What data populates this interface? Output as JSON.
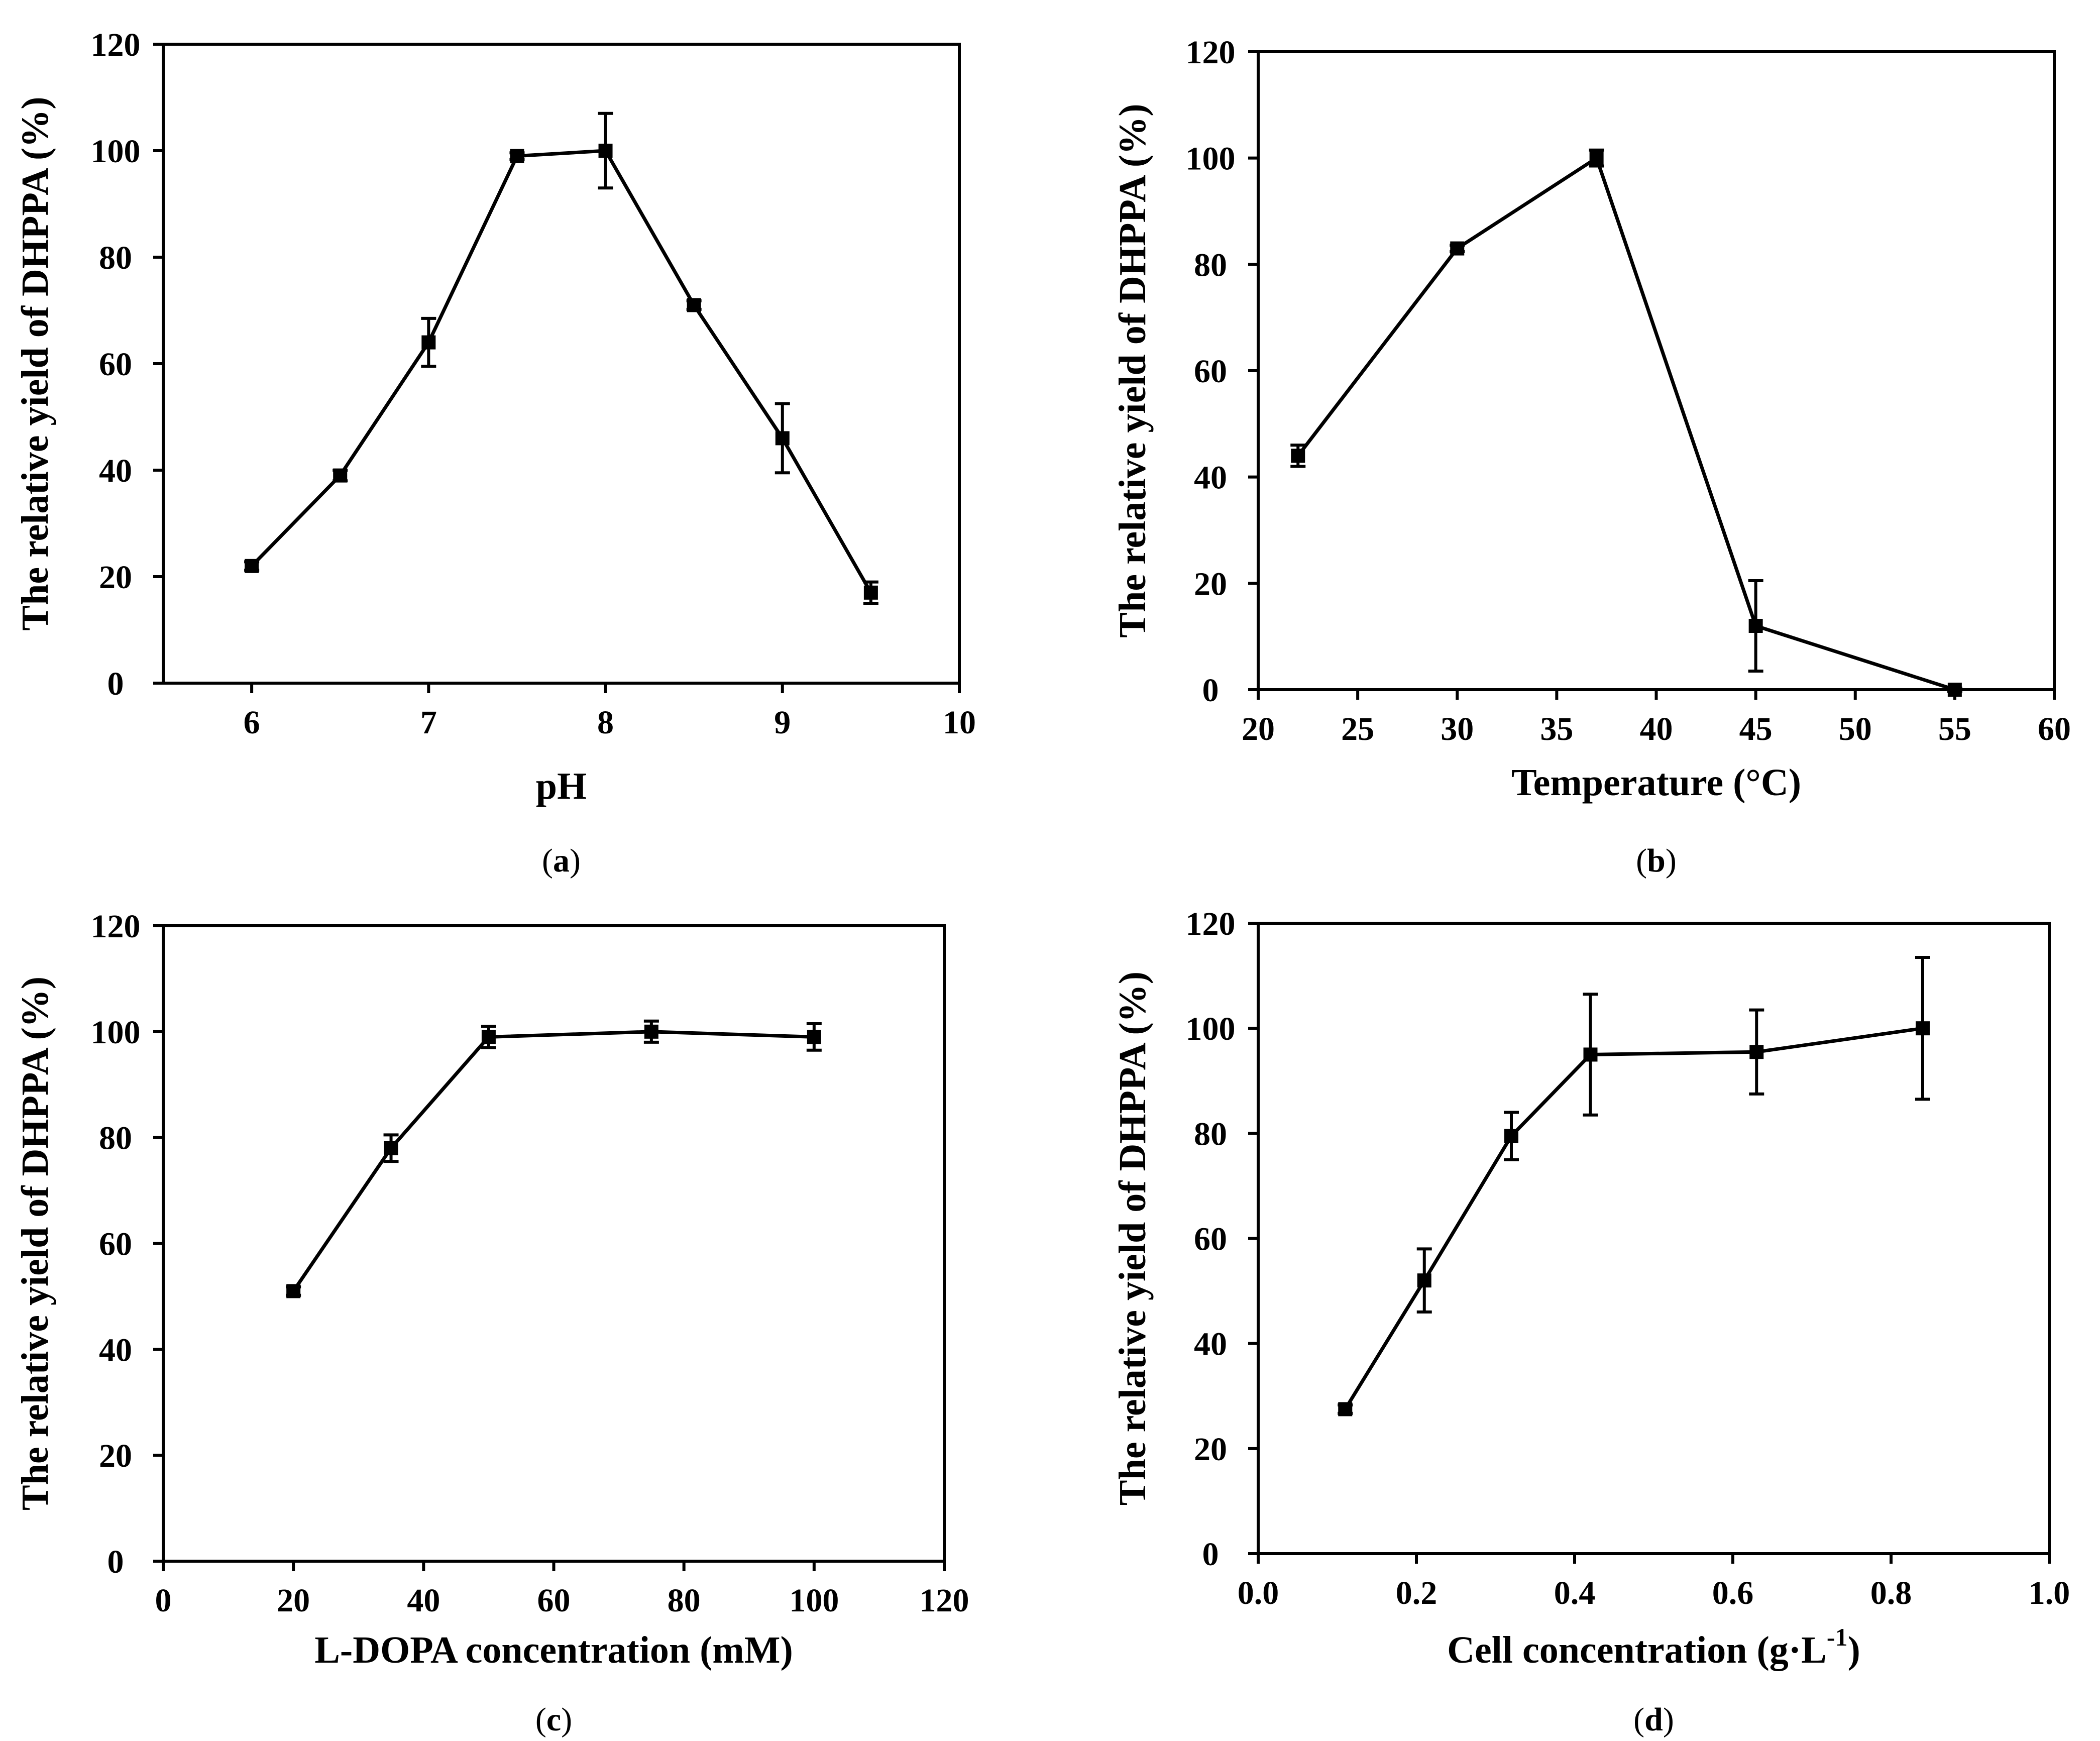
{
  "figure": {
    "panels": [
      "a",
      "b",
      "c",
      "d"
    ]
  },
  "chart_data": [
    {
      "type": "line",
      "panel_label": "a",
      "xlabel": "pH",
      "ylabel": "The relative yield of DHPPA (%)",
      "xlim": [
        5.5,
        10
      ],
      "ylim": [
        0,
        120
      ],
      "xticks": [
        6,
        7,
        8,
        9,
        10
      ],
      "yticks": [
        0,
        20,
        40,
        60,
        80,
        100,
        120
      ],
      "x": [
        6,
        6.5,
        7,
        7.5,
        8,
        8.5,
        9,
        9.5
      ],
      "y": [
        22,
        39,
        64,
        99,
        100,
        71,
        46,
        17
      ],
      "err": [
        0.8,
        1,
        4.5,
        0.6,
        7,
        0.8,
        6.5,
        2
      ]
    },
    {
      "type": "line",
      "panel_label": "b",
      "xlabel": "Temperature (°C)",
      "ylabel": "The relative yield of DHPPA (%)",
      "xlim": [
        20,
        60
      ],
      "ylim": [
        0,
        120
      ],
      "xticks": [
        20,
        25,
        30,
        35,
        40,
        45,
        50,
        55,
        60
      ],
      "yticks": [
        0,
        20,
        40,
        60,
        80,
        100,
        120
      ],
      "x": [
        22,
        30,
        37,
        45,
        55
      ],
      "y": [
        44,
        83,
        100,
        12,
        0
      ],
      "err": [
        2,
        0.6,
        1.5,
        8.5,
        0.3
      ]
    },
    {
      "type": "line",
      "panel_label": "c",
      "xlabel": "L-DOPA concentration (mM)",
      "ylabel": "The relative yield of DHPPA (%)",
      "xlim": [
        0,
        120
      ],
      "ylim": [
        0,
        120
      ],
      "xticks": [
        0,
        20,
        40,
        60,
        80,
        100,
        120
      ],
      "yticks": [
        0,
        20,
        40,
        60,
        80,
        100,
        120
      ],
      "x": [
        20,
        35,
        50,
        75,
        100
      ],
      "y": [
        51,
        78,
        99,
        100,
        99
      ],
      "err": [
        0.8,
        2.5,
        2,
        2,
        2.5
      ]
    },
    {
      "type": "line",
      "panel_label": "d",
      "xlabel": "Cell concentration (g·L",
      "xlabel_superscript": "-1",
      "xlabel_suffix": ")",
      "ylabel": "The relative yield of DHPPA (%)",
      "xlim": [
        0,
        1
      ],
      "ylim": [
        0,
        120
      ],
      "xticks": [
        "0.0",
        "0.2",
        "0.4",
        "0.6",
        "0.8",
        "1.0"
      ],
      "yticks": [
        0,
        20,
        40,
        60,
        80,
        100,
        120
      ],
      "x": [
        0.11,
        0.21,
        0.32,
        0.42,
        0.63,
        0.84
      ],
      "y": [
        27.5,
        52,
        79.5,
        95,
        95.5,
        100
      ],
      "err": [
        0.8,
        6,
        4.5,
        11.5,
        8,
        13.5
      ]
    }
  ]
}
